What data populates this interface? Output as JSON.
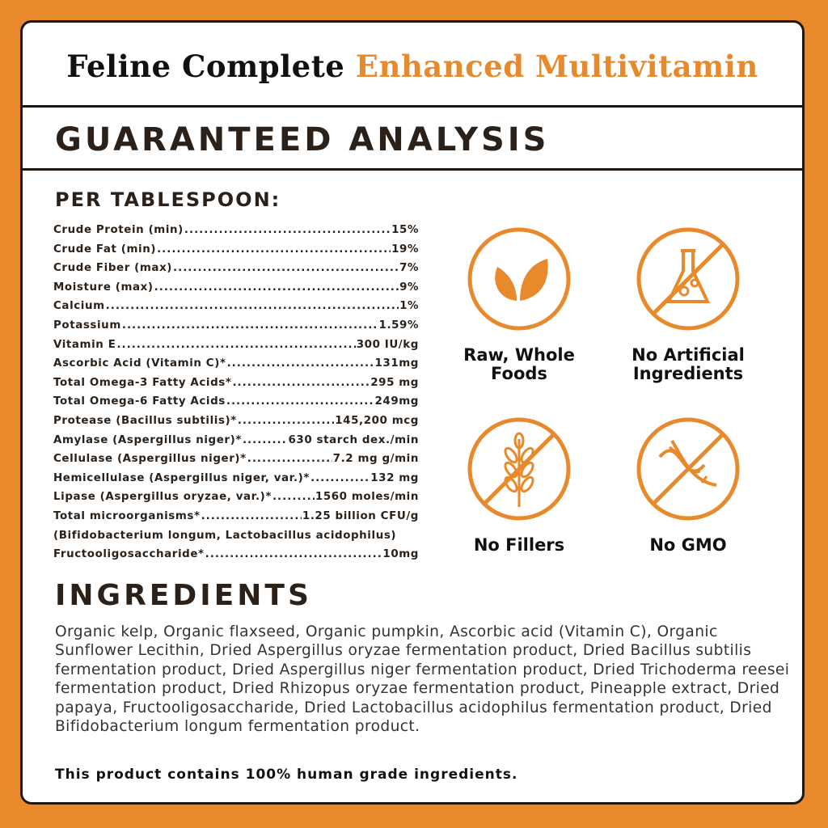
{
  "title": {
    "part1": "Feline Complete",
    "part2": "Enhanced Multivitamin"
  },
  "colors": {
    "accent": "#E8892C",
    "text": "#2b2119"
  },
  "section_title": "GUARANTEED ANALYSIS",
  "per_label": "PER TABLESPOON:",
  "analysis": [
    {
      "name": "Crude Protein (min)",
      "value": "15%"
    },
    {
      "name": "Crude Fat (min)",
      "value": "19%"
    },
    {
      "name": "Crude Fiber (max)",
      "value": "7%"
    },
    {
      "name": "Moisture (max)",
      "value": "9%"
    },
    {
      "name": "Calcium",
      "value": "1%"
    },
    {
      "name": "Potassium",
      "value": "1.59%"
    },
    {
      "name": "Vitamin E",
      "value": "300 IU/kg"
    },
    {
      "name": "Ascorbic Acid (Vitamin C)*",
      "value": "131mg"
    },
    {
      "name": "Total Omega-3 Fatty Acids*",
      "value": "295 mg"
    },
    {
      "name": "Total Omega-6 Fatty Acids",
      "value": "249mg"
    },
    {
      "name": "Protease (Bacillus subtilis)*",
      "value": "145,200 mcg"
    },
    {
      "name": "Amylase (Aspergillus niger)*",
      "value": "630 starch dex./min"
    },
    {
      "name": "Cellulase (Aspergillus niger)*",
      "value": "7.2 mg g/min"
    },
    {
      "name": "Hemicellulase (Aspergillus niger, var.)*",
      "value": "132 mg"
    },
    {
      "name": "Lipase (Aspergillus oryzae, var.)*",
      "value": "1560 moles/min"
    },
    {
      "name": "Total microorganisms*",
      "value": "1.25 billion CFU/g"
    },
    {
      "name": "(Bifidobacterium longum, Lactobacillus acidophilus)",
      "value": ""
    },
    {
      "name": "Fructooligosaccharide*",
      "value": "10mg"
    }
  ],
  "badges": [
    {
      "label1": "Raw, Whole",
      "label2": "Foods",
      "icon": "leaves-icon"
    },
    {
      "label1": "No Artificial",
      "label2": "Ingredients",
      "icon": "no-flask-icon"
    },
    {
      "label1": "No Fillers",
      "label2": "",
      "icon": "no-wheat-icon"
    },
    {
      "label1": "No GMO",
      "label2": "",
      "icon": "no-dna-icon"
    }
  ],
  "ingredients_title": "INGREDIENTS",
  "ingredients_text": "Organic kelp, Organic flaxseed, Organic pumpkin, Ascorbic acid (Vitamin C), Organic Sunflower Lecithin, Dried Aspergillus oryzae fermentation product, Dried Bacillus subtilis fermentation product, Dried Aspergillus niger fermentation product, Dried Trichoderma reesei fermentation product, Dried Rhizopus oryzae fermentation product, Pineapple extract, Dried papaya, Fructooligosaccharide, Dried Lactobacillus acidophilus fermentation product, Dried Bifidobacterium longum fermentation product.",
  "footer": "This product contains 100% human grade ingredients."
}
